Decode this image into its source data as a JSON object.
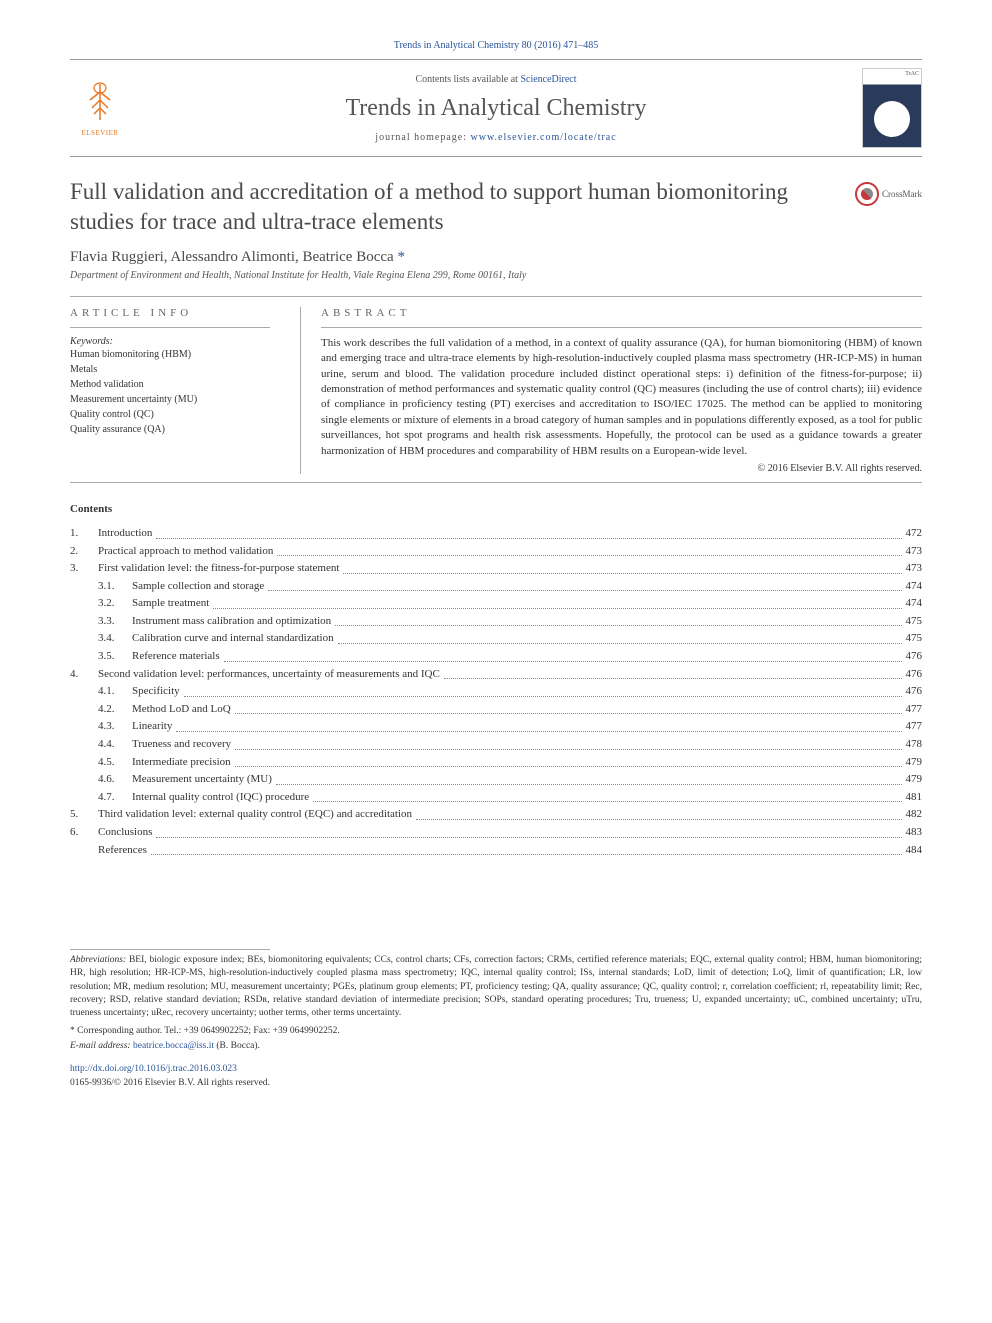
{
  "running_header": "Trends in Analytical Chemistry 80 (2016) 471–485",
  "publisher": {
    "name": "ELSEVIER"
  },
  "journal": {
    "contents_line_pre": "Contents lists available at ",
    "contents_link": "ScienceDirect",
    "title": "Trends in Analytical Chemistry",
    "homepage_pre": "journal homepage: ",
    "homepage_url": "www.elsevier.com/locate/trac",
    "cover_label": "TrAC"
  },
  "crossmark": "CrossMark",
  "article": {
    "title": "Full validation and accreditation of a method to support human biomonitoring studies for trace and ultra-trace elements",
    "authors": "Flavia Ruggieri, Alessandro Alimonti, Beatrice Bocca ",
    "corresponding_mark": "*",
    "affiliation": "Department of Environment and Health, National Institute for Health, Viale Regina Elena 299, Rome 00161, Italy"
  },
  "headings": {
    "article_info": "ARTICLE INFO",
    "abstract": "ABSTRACT",
    "contents": "Contents"
  },
  "keywords": {
    "label": "Keywords:",
    "items": [
      "Human biomonitoring (HBM)",
      "Metals",
      "Method validation",
      "Measurement uncertainty (MU)",
      "Quality control (QC)",
      "Quality assurance (QA)"
    ]
  },
  "abstract": {
    "text": "This work describes the full validation of a method, in a context of quality assurance (QA), for human biomonitoring (HBM) of known and emerging trace and ultra-trace elements by high-resolution-inductively coupled plasma mass spectrometry (HR-ICP-MS) in human urine, serum and blood. The validation procedure included distinct operational steps: i) definition of the fitness-for-purpose; ii) demonstration of method performances and systematic quality control (QC) measures (including the use of control charts); iii) evidence of compliance in proficiency testing (PT) exercises and accreditation to ISO/IEC 17025. The method can be applied to monitoring single elements or mixture of elements in a broad category of human samples and in populations differently exposed, as a tool for public surveillances, hot spot programs and health risk assessments. Hopefully, the protocol can be used as a guidance towards a greater harmonization of HBM procedures and comparability of HBM results on a European-wide level.",
    "copyright": "© 2016 Elsevier B.V. All rights reserved."
  },
  "toc": [
    {
      "num": "1.",
      "label": "Introduction",
      "page": "472",
      "level": 1
    },
    {
      "num": "2.",
      "label": "Practical approach to method validation",
      "page": "473",
      "level": 1
    },
    {
      "num": "3.",
      "label": "First validation level: the fitness-for-purpose statement",
      "page": "473",
      "level": 1
    },
    {
      "num": "3.1.",
      "label": "Sample collection and storage",
      "page": "474",
      "level": 2
    },
    {
      "num": "3.2.",
      "label": "Sample treatment",
      "page": "474",
      "level": 2
    },
    {
      "num": "3.3.",
      "label": "Instrument mass calibration and optimization",
      "page": "475",
      "level": 2
    },
    {
      "num": "3.4.",
      "label": "Calibration curve and internal standardization",
      "page": "475",
      "level": 2
    },
    {
      "num": "3.5.",
      "label": "Reference materials",
      "page": "476",
      "level": 2
    },
    {
      "num": "4.",
      "label": "Second validation level: performances, uncertainty of measurements and IQC",
      "page": "476",
      "level": 1
    },
    {
      "num": "4.1.",
      "label": "Specificity",
      "page": "476",
      "level": 2
    },
    {
      "num": "4.2.",
      "label": "Method LoD and LoQ",
      "page": "477",
      "level": 2
    },
    {
      "num": "4.3.",
      "label": "Linearity",
      "page": "477",
      "level": 2
    },
    {
      "num": "4.4.",
      "label": "Trueness and recovery",
      "page": "478",
      "level": 2
    },
    {
      "num": "4.5.",
      "label": "Intermediate precision",
      "page": "479",
      "level": 2
    },
    {
      "num": "4.6.",
      "label": "Measurement uncertainty (MU)",
      "page": "479",
      "level": 2
    },
    {
      "num": "4.7.",
      "label": "Internal quality control (IQC) procedure",
      "page": "481",
      "level": 2
    },
    {
      "num": "5.",
      "label": "Third validation level: external quality control (EQC) and accreditation",
      "page": "482",
      "level": 1
    },
    {
      "num": "6.",
      "label": "Conclusions",
      "page": "483",
      "level": 1
    },
    {
      "num": "",
      "label": "References",
      "page": "484",
      "level": 1
    }
  ],
  "footer": {
    "abbrev_label": "Abbreviations:",
    "abbrev_text": " BEI, biologic exposure index; BEs, biomonitoring equivalents; CCs, control charts; CFs, correction factors; CRMs, certified reference materials; EQC, external quality control; HBM, human biomonitoring; HR, high resolution; HR-ICP-MS, high-resolution-inductively coupled plasma mass spectrometry; IQC, internal quality control; ISs, internal standards; LoD, limit of detection; LoQ, limit of quantification; LR, low resolution; MR, medium resolution; MU, measurement uncertainty; PGEs, platinum group elements; PT, proficiency testing; QA, quality assurance; QC, quality control; r, correlation coefficient; rl, repeatability limit; Rec, recovery; RSD, relative standard deviation; RSDʀ, relative standard deviation of intermediate precision; SOPs, standard operating procedures; Tru, trueness; U, expanded uncertainty; uC, combined uncertainty; uTru, trueness uncertainty; uRec, recovery uncertainty; uother terms, other terms uncertainty.",
    "corr_mark": "* ",
    "corr_text": "Corresponding author. Tel.: +39 0649902252; Fax: +39 0649902252.",
    "email_label": "E-mail address: ",
    "email": "beatrice.bocca@iss.it",
    "email_after": " (B. Bocca).",
    "doi": "http://dx.doi.org/10.1016/j.trac.2016.03.023",
    "issn_line": "0165-9936/© 2016 Elsevier B.V. All rights reserved."
  }
}
